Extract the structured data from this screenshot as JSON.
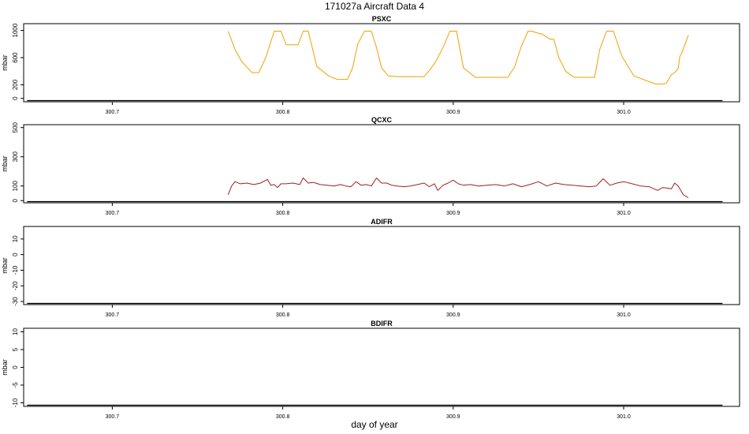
{
  "title": "171027a   Aircraft Data 4",
  "xlabel": "day of year",
  "chart_data": [
    {
      "type": "line",
      "title": "PSXC",
      "ylabel": "mbar",
      "xlim": [
        300.648,
        301.068
      ],
      "ylim": [
        -50,
        1100
      ],
      "x_ticks": [
        300.7,
        300.8,
        300.9,
        301.0
      ],
      "x_tick_labels": [
        "300.7",
        "300.8",
        "300.9",
        "301.0"
      ],
      "y_ticks": [
        0,
        200,
        600,
        1000
      ],
      "y_tick_labels": [
        "0",
        "200",
        "600",
        "1000"
      ],
      "color": "#f0a000",
      "series": [
        {
          "x": [
            300.768,
            300.772,
            300.776,
            300.782,
            300.786,
            300.79,
            300.795,
            300.799,
            300.802,
            300.809,
            300.812,
            300.815,
            300.82,
            300.827,
            300.832,
            300.838,
            300.841,
            300.844,
            300.848,
            300.852,
            300.855,
            300.858,
            300.862,
            300.868,
            300.883,
            300.886,
            300.89,
            300.895,
            300.898,
            300.902,
            300.906,
            300.913,
            300.932,
            300.936,
            300.94,
            300.944,
            300.946,
            300.951,
            300.952,
            300.957,
            300.959,
            300.962,
            300.966,
            300.971,
            300.983,
            300.986,
            300.99,
            300.994,
            300.999,
            301.006,
            301.019,
            301.022,
            301.025,
            301.028,
            301.03,
            301.032,
            301.033,
            301.034,
            301.038
          ],
          "y": [
            990,
            720,
            540,
            380,
            380,
            600,
            990,
            990,
            790,
            790,
            990,
            990,
            470,
            330,
            280,
            280,
            450,
            800,
            990,
            990,
            750,
            450,
            330,
            320,
            320,
            410,
            550,
            800,
            990,
            990,
            450,
            310,
            310,
            460,
            770,
            990,
            990,
            950,
            950,
            870,
            870,
            600,
            400,
            310,
            310,
            720,
            990,
            990,
            620,
            330,
            210,
            210,
            220,
            350,
            380,
            440,
            620,
            660,
            930
          ]
        }
      ]
    },
    {
      "type": "line",
      "title": "QCXC",
      "ylabel": "mbar",
      "xlim": [
        300.648,
        301.068
      ],
      "ylim": [
        -15,
        520
      ],
      "x_ticks": [
        300.7,
        300.8,
        300.9,
        301.0
      ],
      "x_tick_labels": [
        "300.7",
        "300.8",
        "300.9",
        "301.0"
      ],
      "y_ticks": [
        0,
        100,
        300,
        500
      ],
      "y_tick_labels": [
        "0",
        "100",
        "300",
        "500"
      ],
      "color": "#a02020",
      "series": [
        {
          "x": [
            300.768,
            300.77,
            300.772,
            300.775,
            300.779,
            300.783,
            300.787,
            300.791,
            300.793,
            300.795,
            300.797,
            300.799,
            300.802,
            300.806,
            300.81,
            300.812,
            300.815,
            300.818,
            300.822,
            300.826,
            300.83,
            300.834,
            300.837,
            300.84,
            300.843,
            300.846,
            300.849,
            300.852,
            300.855,
            300.858,
            300.861,
            300.864,
            300.867,
            300.871,
            300.875,
            300.879,
            300.883,
            300.886,
            300.889,
            300.891,
            300.894,
            300.897,
            300.9,
            300.903,
            300.906,
            300.91,
            300.915,
            300.92,
            300.925,
            300.93,
            300.935,
            300.94,
            300.945,
            300.95,
            300.955,
            300.96,
            300.965,
            300.97,
            300.975,
            300.98,
            300.984,
            300.988,
            300.992,
            300.996,
            301.0,
            301.005,
            301.01,
            301.015,
            301.02,
            301.023,
            301.026,
            301.028,
            301.03,
            301.032,
            301.035,
            301.038
          ],
          "y": [
            40,
            100,
            130,
            115,
            120,
            110,
            120,
            145,
            105,
            110,
            90,
            115,
            115,
            120,
            110,
            155,
            120,
            125,
            110,
            105,
            100,
            110,
            100,
            95,
            130,
            105,
            110,
            100,
            155,
            120,
            120,
            105,
            100,
            95,
            100,
            110,
            120,
            95,
            115,
            70,
            105,
            120,
            140,
            115,
            105,
            110,
            100,
            105,
            110,
            100,
            115,
            95,
            110,
            130,
            100,
            120,
            110,
            105,
            100,
            95,
            100,
            150,
            105,
            120,
            130,
            115,
            100,
            95,
            70,
            90,
            85,
            80,
            120,
            100,
            40,
            20
          ]
        }
      ]
    },
    {
      "type": "line",
      "title": "ADIFR",
      "ylabel": "mbar",
      "xlim": [
        300.648,
        301.068
      ],
      "ylim": [
        -32,
        18
      ],
      "x_ticks": [
        300.7,
        300.8,
        300.9,
        301.0
      ],
      "x_tick_labels": [
        "300.7",
        "300.8",
        "300.9",
        "301.0"
      ],
      "y_ticks": [
        -30,
        -20,
        -10,
        0,
        10
      ],
      "y_tick_labels": [
        "-30",
        "-20",
        "-10",
        "0",
        "10"
      ],
      "series": []
    },
    {
      "type": "line",
      "title": "BDIFR",
      "ylabel": "mbar",
      "xlim": [
        300.648,
        301.068
      ],
      "ylim": [
        -11,
        11
      ],
      "x_ticks": [
        300.7,
        300.8,
        300.9,
        301.0
      ],
      "x_tick_labels": [
        "300.7",
        "300.8",
        "300.9",
        "301.0"
      ],
      "y_ticks": [
        -10,
        -5,
        0,
        5,
        10
      ],
      "y_tick_labels": [
        "-10",
        "-5",
        "0",
        "5",
        "10"
      ],
      "series": []
    }
  ]
}
